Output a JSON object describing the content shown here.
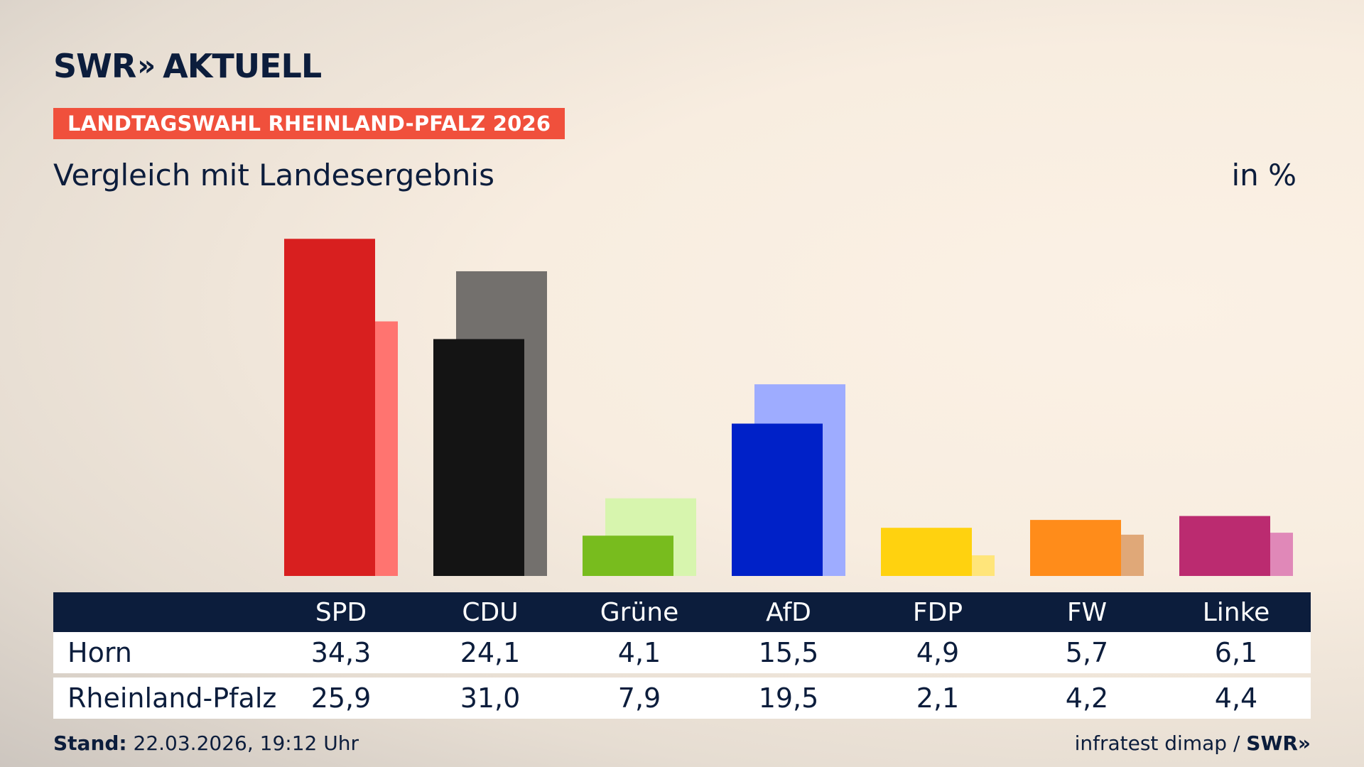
{
  "brand": {
    "swr": "SWR",
    "chevrons": "»",
    "aktuell": "AKTUELL"
  },
  "tag": "LANDTAGSWAHL RHEINLAND-PFALZ 2026",
  "subtitle": "Vergleich mit Landesergebnis",
  "unit": "in %",
  "footer": {
    "stand_label": "Stand:",
    "stand_value": " 22.03.2026, 19:12 Uhr",
    "source": "infratest dimap /",
    "swr": "SWR»"
  },
  "chart_data": {
    "type": "bar",
    "categories": [
      "SPD",
      "CDU",
      "Grüne",
      "AfD",
      "FDP",
      "FW",
      "Linke"
    ],
    "series": [
      {
        "name": "Horn",
        "values": [
          34.3,
          24.1,
          4.1,
          15.5,
          4.9,
          5.7,
          6.1
        ]
      },
      {
        "name": "Rheinland-Pfalz",
        "values": [
          25.9,
          31.0,
          7.9,
          19.5,
          2.1,
          4.2,
          4.4
        ]
      }
    ],
    "colors_primary": [
      "#d81f1f",
      "#141414",
      "#78bc1e",
      "#0021c8",
      "#ffd20f",
      "#ff8c1a",
      "#bb2b70"
    ],
    "colors_secondary": [
      "#ff7470",
      "#73706d",
      "#d7f5ae",
      "#9eacff",
      "#ffe57a",
      "#e0a878",
      "#e088b8"
    ],
    "ylim": [
      0,
      40
    ],
    "title": "Vergleich mit Landesergebnis",
    "ylabel": "in %"
  },
  "table": {
    "rows": [
      {
        "label": "Horn",
        "values": [
          "34,3",
          "24,1",
          "4,1",
          "15,5",
          "4,9",
          "5,7",
          "6,1"
        ]
      },
      {
        "label": "Rheinland-Pfalz",
        "values": [
          "25,9",
          "31,0",
          "7,9",
          "19,5",
          "2,1",
          "4,2",
          "4,4"
        ]
      }
    ]
  }
}
